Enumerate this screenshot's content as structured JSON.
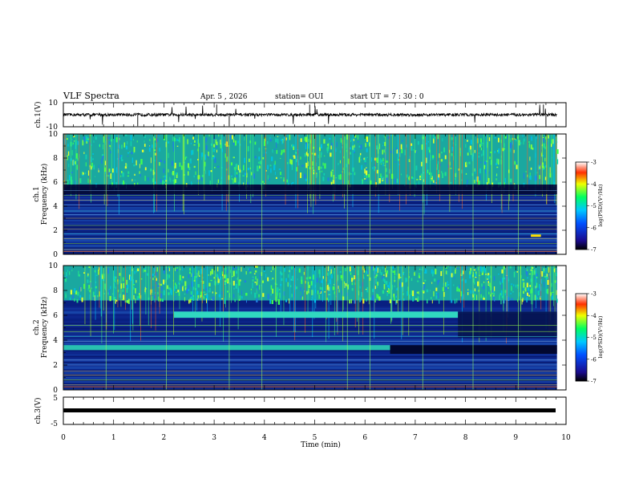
{
  "header": {
    "title": "VLF Spectra",
    "date": "Apr. 5  , 2026",
    "station": "station= OUI",
    "start_ut": "start  UT =   7 : 30 : 0"
  },
  "chart_data": [
    {
      "type": "line",
      "name": "ch1-waveform",
      "ylabel": "ch.1(V)",
      "ylim": [
        -10,
        10
      ],
      "yticks": [
        "10",
        "-10"
      ],
      "baseline": 0,
      "description_level": "noisy waveform near 0 V with occasional spikes"
    },
    {
      "type": "heatmap",
      "name": "ch1-spectrogram",
      "ylabel": "ch.1",
      "ylabel2": "Frequency (kHz)",
      "ylim": [
        0,
        10
      ],
      "yticks": [
        "0",
        "2",
        "4",
        "6",
        "8",
        "10"
      ],
      "colorbar": {
        "label": "log(PSD)(V²/Hz)",
        "range": [
          -7,
          -3
        ],
        "ticks": [
          "-3",
          "-4",
          "-5",
          "-6",
          "-7"
        ]
      },
      "features": {
        "broadband_noise_above_khz": 5.8,
        "dark_band_khz": [
          5.0,
          5.8
        ]
      }
    },
    {
      "type": "heatmap",
      "name": "ch2-spectrogram",
      "ylabel": "ch.2",
      "ylabel2": "Frequency (kHz)",
      "ylim": [
        0,
        10
      ],
      "yticks": [
        "0",
        "2",
        "4",
        "6",
        "8",
        "10"
      ],
      "colorbar": {
        "label": "log(PSD)(V²/Hz)",
        "range": [
          -7,
          -3
        ],
        "ticks": [
          "-3",
          "-4",
          "-5",
          "-6",
          "-7"
        ]
      },
      "features": {
        "band_6khz": {
          "khz": [
            5.8,
            6.3
          ],
          "min": [
            2.2,
            7.85
          ]
        },
        "band_3_5khz": {
          "khz": [
            3.2,
            3.6
          ],
          "min": [
            0,
            6.5
          ]
        }
      }
    },
    {
      "type": "line",
      "name": "ch3-waveform",
      "ylabel": "ch.3(V)",
      "ylim": [
        -5,
        5
      ],
      "yticks": [
        "5",
        "-5"
      ],
      "baseline": -0.5
    }
  ],
  "xaxis": {
    "label": "Time  (min)",
    "range": [
      0,
      10
    ],
    "ticks": [
      "0",
      "1",
      "2",
      "3",
      "4",
      "5",
      "6",
      "7",
      "8",
      "9",
      "10"
    ]
  },
  "colors": {
    "spectrogram_bg": "#0a1a6e",
    "noise": "#22e08a",
    "dark_band": "#020830"
  }
}
